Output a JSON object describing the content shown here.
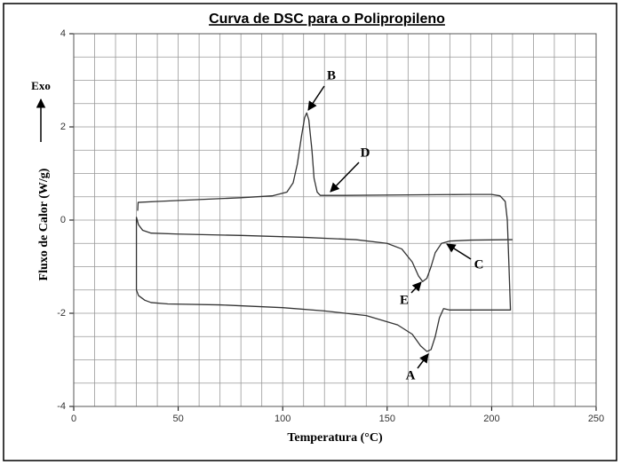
{
  "chart_data": {
    "type": "line",
    "title": "Curva de DSC para o Polipropileno",
    "x_label": "Temperatura (°C)",
    "y_label": "Fluxo de Calor (W/g)",
    "y_direction_label": "Exo",
    "xlim": [
      0,
      250
    ],
    "ylim": [
      -4,
      4
    ],
    "xticks": [
      0,
      50,
      100,
      150,
      200,
      250
    ],
    "yticks": [
      4,
      2,
      0,
      -2,
      -4
    ],
    "x_minor_ticks": [
      10,
      20,
      30,
      40,
      60,
      70,
      80,
      90,
      110,
      120,
      130,
      140,
      160,
      170,
      180,
      190,
      210,
      220,
      230,
      240
    ],
    "y_minor_ticks": [
      3.5,
      3,
      2.5,
      1.5,
      1,
      0.5,
      -0.5,
      -1,
      -1.5,
      -2.5,
      -3,
      -3.5
    ],
    "grid": true,
    "annotations": [
      "A",
      "B",
      "C",
      "D",
      "E"
    ],
    "series": [
      {
        "color": "#333333",
        "x": [
          30.6,
          30.8,
          40,
          60,
          80,
          95,
          102,
          105,
          107,
          109,
          110.5,
          111.5,
          112.5,
          114,
          115,
          116.5,
          118,
          130,
          160,
          190,
          200,
          204,
          206.5,
          207.5,
          208.3,
          209,
          190,
          180,
          177,
          175,
          173,
          171,
          169,
          166,
          162,
          155,
          140,
          120,
          100,
          70,
          45,
          37,
          34,
          31,
          30,
          30,
          31,
          33,
          37,
          50,
          80,
          110,
          135,
          150,
          157,
          162,
          165,
          167,
          169,
          171,
          173,
          176,
          180,
          190,
          210
        ],
        "values": [
          0.2,
          0.38,
          0.4,
          0.44,
          0.48,
          0.52,
          0.6,
          0.8,
          1.2,
          1.8,
          2.2,
          2.3,
          2.15,
          1.5,
          0.9,
          0.6,
          0.53,
          0.53,
          0.54,
          0.55,
          0.55,
          0.52,
          0.4,
          0,
          -1,
          -1.93,
          -1.93,
          -1.93,
          -1.9,
          -2.1,
          -2.5,
          -2.78,
          -2.82,
          -2.7,
          -2.45,
          -2.25,
          -2.05,
          -1.95,
          -1.88,
          -1.82,
          -1.8,
          -1.77,
          -1.72,
          -1.62,
          -1.5,
          0.06,
          -0.1,
          -0.22,
          -0.28,
          -0.3,
          -0.33,
          -0.37,
          -0.42,
          -0.5,
          -0.62,
          -0.9,
          -1.2,
          -1.32,
          -1.25,
          -1.0,
          -0.7,
          -0.5,
          -0.45,
          -0.43,
          -0.42
        ]
      }
    ]
  }
}
